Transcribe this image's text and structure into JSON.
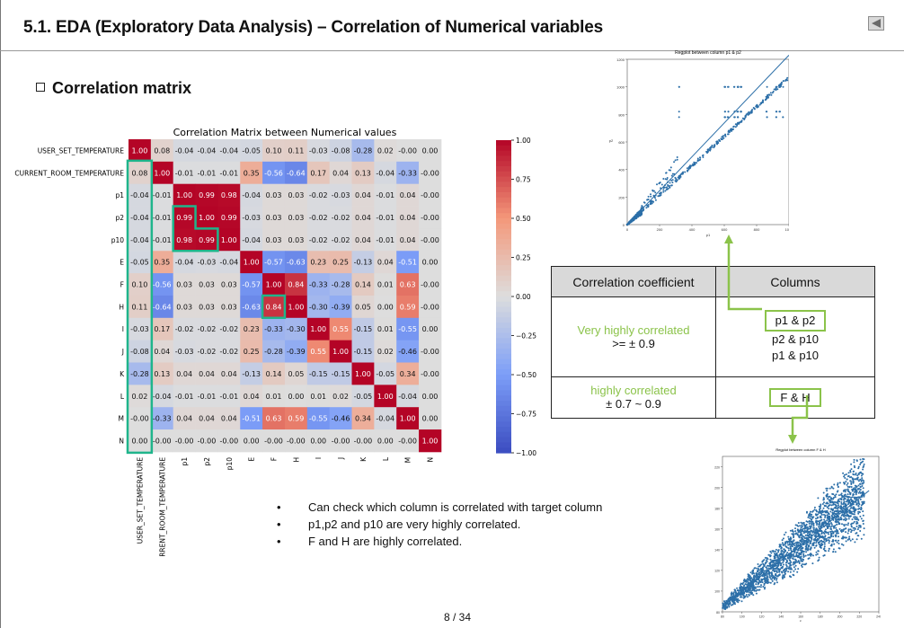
{
  "slide": {
    "title": "5.1. EDA (Exploratory Data Analysis) – Correlation of Numerical variables",
    "section": "Correlation matrix",
    "page_number": "8 / 34"
  },
  "chart_data": [
    {
      "type": "heatmap",
      "title": "Correlation Matrix between Numerical values",
      "row_labels": [
        "USER_SET_TEMPERATURE",
        "CURRENT_ROOM_TEMPERATURE",
        "p1",
        "p2",
        "p10",
        "E",
        "F",
        "H",
        "I",
        "J",
        "K",
        "L",
        "M",
        "N"
      ],
      "col_labels": [
        "USER_SET_TEMPERATURE",
        "CURRENT_ROOM_TEMPERATURE",
        "p1",
        "p2",
        "p10",
        "E",
        "F",
        "H",
        "I",
        "J",
        "K",
        "L",
        "M",
        "N"
      ],
      "cells": [
        [
          "1.00",
          "0.08",
          "-0.04",
          "-0.04",
          "-0.04",
          "-0.05",
          "0.10",
          "0.11",
          "-0.03",
          "-0.08",
          "-0.28",
          "0.02",
          "-0.00",
          "0.00"
        ],
        [
          "0.08",
          "1.00",
          "-0.01",
          "-0.01",
          "-0.01",
          "0.35",
          "-0.56",
          "-0.64",
          "0.17",
          "0.04",
          "0.13",
          "-0.04",
          "-0.33",
          "-0.00"
        ],
        [
          "-0.04",
          "-0.01",
          "1.00",
          "0.99",
          "0.98",
          "-0.04",
          "0.03",
          "0.03",
          "-0.02",
          "-0.03",
          "0.04",
          "-0.01",
          "0.04",
          "-0.00"
        ],
        [
          "-0.04",
          "-0.01",
          "0.99",
          "1.00",
          "0.99",
          "-0.03",
          "0.03",
          "0.03",
          "-0.02",
          "-0.02",
          "0.04",
          "-0.01",
          "0.04",
          "-0.00"
        ],
        [
          "-0.04",
          "-0.01",
          "0.98",
          "0.99",
          "1.00",
          "-0.04",
          "0.03",
          "0.03",
          "-0.02",
          "-0.02",
          "0.04",
          "-0.01",
          "0.04",
          "-0.00"
        ],
        [
          "-0.05",
          "0.35",
          "-0.04",
          "-0.03",
          "-0.04",
          "1.00",
          "-0.57",
          "-0.63",
          "0.23",
          "0.25",
          "-0.13",
          "0.04",
          "-0.51",
          "0.00"
        ],
        [
          "0.10",
          "-0.56",
          "0.03",
          "0.03",
          "0.03",
          "-0.57",
          "1.00",
          "0.84",
          "-0.33",
          "-0.28",
          "0.14",
          "0.01",
          "0.63",
          "-0.00"
        ],
        [
          "0.11",
          "-0.64",
          "0.03",
          "0.03",
          "0.03",
          "-0.63",
          "0.84",
          "1.00",
          "-0.30",
          "-0.39",
          "0.05",
          "0.00",
          "0.59",
          "-0.00"
        ],
        [
          "-0.03",
          "0.17",
          "-0.02",
          "-0.02",
          "-0.02",
          "0.23",
          "-0.33",
          "-0.30",
          "1.00",
          "0.55",
          "-0.15",
          "0.01",
          "-0.55",
          "0.00"
        ],
        [
          "-0.08",
          "0.04",
          "-0.03",
          "-0.02",
          "-0.02",
          "0.25",
          "-0.28",
          "-0.39",
          "0.55",
          "1.00",
          "-0.15",
          "0.02",
          "-0.46",
          "-0.00"
        ],
        [
          "-0.28",
          "0.13",
          "0.04",
          "0.04",
          "0.04",
          "-0.13",
          "0.14",
          "0.05",
          "-0.15",
          "-0.15",
          "1.00",
          "-0.05",
          "0.34",
          "-0.00"
        ],
        [
          "0.02",
          "-0.04",
          "-0.01",
          "-0.01",
          "-0.01",
          "0.04",
          "0.01",
          "0.00",
          "0.01",
          "0.02",
          "-0.05",
          "1.00",
          "-0.04",
          "0.00"
        ],
        [
          "-0.00",
          "-0.33",
          "0.04",
          "0.04",
          "0.04",
          "-0.51",
          "0.63",
          "0.59",
          "-0.55",
          "-0.46",
          "0.34",
          "-0.04",
          "1.00",
          "0.00"
        ],
        [
          "0.00",
          "-0.00",
          "-0.00",
          "-0.00",
          "-0.00",
          "0.00",
          "-0.00",
          "-0.00",
          "0.00",
          "-0.00",
          "-0.00",
          "0.00",
          "-0.00",
          "1.00"
        ]
      ],
      "colorbar": {
        "range": [
          -1.0,
          1.0
        ],
        "ticks": [
          {
            "value": 1.0,
            "label": "1.00"
          },
          {
            "value": 0.75,
            "label": "0.75"
          },
          {
            "value": 0.5,
            "label": "0.50"
          },
          {
            "value": 0.25,
            "label": "0.25"
          },
          {
            "value": 0.0,
            "label": "0.00"
          },
          {
            "value": -0.25,
            "label": "−0.25"
          },
          {
            "value": -0.5,
            "label": "−0.50"
          },
          {
            "value": -0.75,
            "label": "−0.75"
          },
          {
            "value": -1.0,
            "label": "−1.00"
          }
        ]
      },
      "highlight_color": "#1fb58b"
    },
    {
      "type": "scatter",
      "title": "Regplot between column p1 & p2",
      "xlabel": "p1",
      "ylabel": "p2",
      "xlim": [
        0,
        1000
      ],
      "ylim": [
        0,
        1200
      ],
      "xticks": [
        0,
        200,
        400,
        600,
        800,
        1000
      ],
      "yticks": [
        0,
        200,
        400,
        600,
        800,
        1000,
        1200
      ],
      "regression_line": [
        [
          0,
          0
        ],
        [
          1000,
          1230
        ]
      ]
    },
    {
      "type": "scatter",
      "title": "Regplot between column F & H",
      "xlabel": "F",
      "ylabel": "H",
      "xlim": [
        80,
        240
      ],
      "ylim": [
        80,
        230
      ],
      "xticks": [
        80,
        100,
        120,
        140,
        160,
        180,
        200,
        220,
        240
      ],
      "yticks": [
        80,
        100,
        120,
        140,
        160,
        180,
        200,
        220
      ],
      "regression_line": [
        [
          80,
          85
        ],
        [
          230,
          197
        ]
      ]
    }
  ],
  "table": {
    "headers": [
      "Correlation coefficient",
      "Columns"
    ],
    "rows": [
      {
        "label": "Very highly correlated",
        "range": ">= ± 0.9",
        "columns": [
          "p1 & p2",
          "p2 & p10",
          "p1 & p10"
        ]
      },
      {
        "label": "highly correlated",
        "range": "± 0.7 ~ 0.9",
        "columns": [
          "F & H"
        ]
      }
    ]
  },
  "bullets": [
    "Can check which column is correlated with target column",
    "p1,p2 and p10 are very highly correlated.",
    "F and H are highly correlated."
  ],
  "colors": {
    "accent_green": "#8bc34a",
    "scatter_blue": "#2c6fa8",
    "heat_red": "#b40426",
    "heat_blue": "#3b4cc0"
  }
}
